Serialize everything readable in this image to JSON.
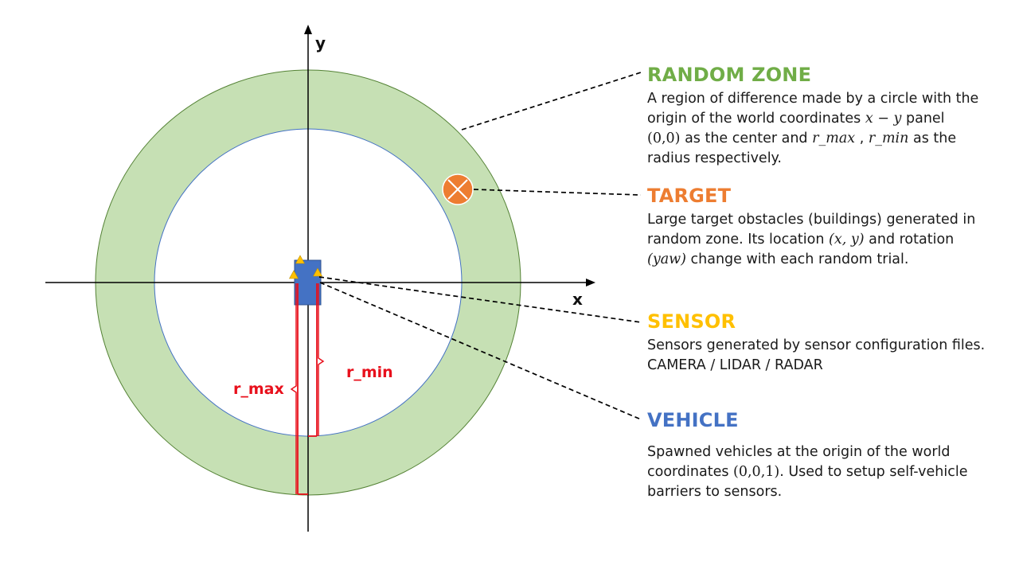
{
  "colors": {
    "ring_fill": "#c6e0b4",
    "ring_stroke": "#548235",
    "inner_stroke": "#4472c4",
    "target": "#ed7d31",
    "sensor": "#ffc000",
    "vehicle": "#4472c4",
    "radius_marker": "#e8101c",
    "random_heading": "#70ad47",
    "target_heading": "#ed7d31",
    "sensor_heading": "#ffc000",
    "vehicle_heading": "#4472c4"
  },
  "axes": {
    "x_label": "x",
    "y_label": "y"
  },
  "radius_labels": {
    "r_max": "r_max",
    "r_min": "r_min"
  },
  "random_zone": {
    "title": "RANDOM ZONE",
    "line1": "A region of difference made by a circle with the",
    "line2_pre": "origin of the world coordinates ",
    "line2_math": "x − y",
    "line2_post": " panel",
    "line3_math": "(0,0)",
    "line3_mid": " as the center and ",
    "line3_rmax": "r_max",
    "line3_sep": " , ",
    "line3_rmin": "r_min",
    "line3_post": " as the",
    "line4": "radius respectively."
  },
  "target": {
    "title": "TARGET",
    "line1": "Large target obstacles (buildings) generated in",
    "line2_pre": "random zone. Its location ",
    "line2_math": "(x, y)",
    "line2_post": " and rotation",
    "line3_math": "(yaw)",
    "line3_post": " change with each random trial."
  },
  "sensor": {
    "title": "SENSOR",
    "line1": "Sensors generated by sensor configuration files.",
    "line2": "CAMERA / LIDAR / RADAR"
  },
  "vehicle": {
    "title": "VEHICLE",
    "line1": "Spawned vehicles at the origin of the world",
    "line2_pre": "coordinates ",
    "line2_math": "(0,0,1)",
    "line2_post": ". Used to setup self-vehicle",
    "line3": "barriers to sensors."
  }
}
